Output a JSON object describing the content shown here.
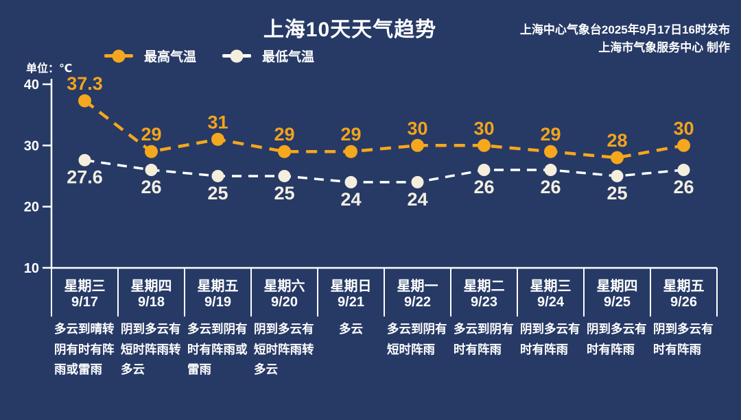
{
  "page": {
    "background_color": "#273A66"
  },
  "source": {
    "line1": "上海中心气象台2025年9月17日16时发布",
    "line2": "上海市气象服务中心 制作"
  },
  "chart_data": {
    "type": "line",
    "title": "上海10天天气趋势",
    "ylabel": "单位：℃",
    "yticks": [
      40,
      30,
      20,
      10
    ],
    "ylim": [
      10,
      42
    ],
    "grid": false,
    "line_style": "dashed",
    "legend_position": "top-left",
    "categories": [
      "9/17",
      "9/18",
      "9/19",
      "9/20",
      "9/21",
      "9/22",
      "9/23",
      "9/24",
      "9/25",
      "9/26"
    ],
    "weekdays": [
      "星期三",
      "星期四",
      "星期五",
      "星期六",
      "星期日",
      "星期一",
      "星期二",
      "星期三",
      "星期四",
      "星期五"
    ],
    "forecasts": [
      "多云到晴转阴有时有阵雨或雷雨",
      "阴到多云有短时阵雨转多云",
      "多云到阴有时有阵雨或雷雨",
      "阴到多云有短时阵雨转多云",
      "多云",
      "多云到阴有短时阵雨",
      "多云到阴有时有阵雨",
      "阴到多云有时有阵雨",
      "阴到多云有时有阵雨",
      "阴到多云有时有阵雨"
    ],
    "series": [
      {
        "name": "最高气温",
        "values": [
          37.3,
          29,
          31,
          29,
          29,
          30,
          30,
          29,
          28,
          30
        ],
        "color": "#F5A71D",
        "dot_color": "#F5A71D",
        "label_color": "#F2A41C",
        "label_position": "above"
      },
      {
        "name": "最低气温",
        "values": [
          27.6,
          26,
          25,
          25,
          24,
          24,
          26,
          26,
          25,
          26
        ],
        "color": "#FFFFFF",
        "dot_color": "#F5EEDC",
        "label_color": "#F4EFE3",
        "label_position": "below"
      }
    ],
    "axis_color": "#FFFFFF"
  }
}
